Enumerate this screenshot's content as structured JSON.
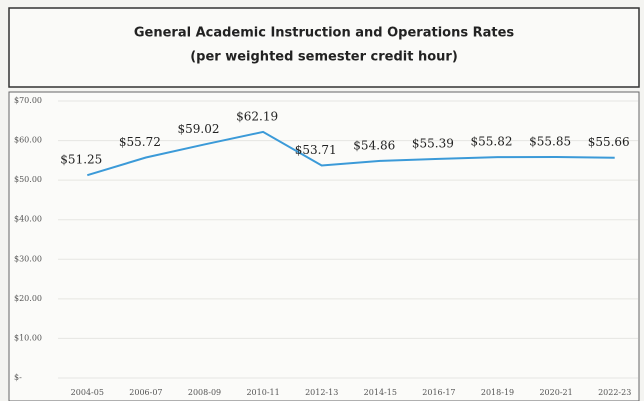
{
  "chart_data": {
    "type": "line",
    "title": "General Academic Instruction and Operations Rates",
    "subtitle": "(per weighted semester credit hour)",
    "categories": [
      "2004-05",
      "2006-07",
      "2008-09",
      "2010-11",
      "2012-13",
      "2014-15",
      "2016-17",
      "2018-19",
      "2020-21",
      "2022-23"
    ],
    "values": [
      51.25,
      55.72,
      59.02,
      62.19,
      53.71,
      54.86,
      55.39,
      55.82,
      55.85,
      55.66
    ],
    "value_labels": [
      "$51.25",
      "$55.72",
      "$59.02",
      "$62.19",
      "$53.71",
      "$54.86",
      "$55.39",
      "$55.82",
      "$55.85",
      "$55.66"
    ],
    "color": "#3b9ad8",
    "ylim": [
      0,
      70
    ],
    "yticks": [
      {
        "value": 0,
        "label": "$-"
      },
      {
        "value": 10,
        "label": "$10.00"
      },
      {
        "value": 20,
        "label": "$20.00"
      },
      {
        "value": 30,
        "label": "$30.00"
      },
      {
        "value": 40,
        "label": "$40.00"
      },
      {
        "value": 50,
        "label": "$50.00"
      },
      {
        "value": 60,
        "label": "$60.00"
      },
      {
        "value": 70,
        "label": "$70.00"
      }
    ],
    "grid": true
  }
}
